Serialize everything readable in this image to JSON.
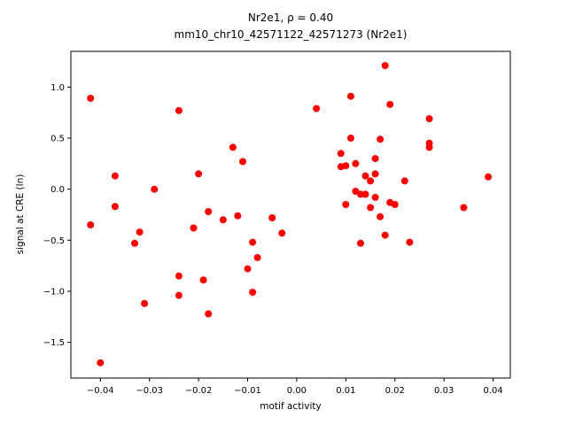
{
  "chart_data": {
    "type": "scatter",
    "title": "Nr2e1, ρ = 0.40",
    "subtitle": "mm10_chr10_42571122_42571273 (Nr2e1)",
    "xlabel": "motif activity",
    "ylabel": "signal at CRE (ln)",
    "xlim": [
      -0.046,
      0.0435
    ],
    "ylim": [
      -1.85,
      1.35
    ],
    "xticks": [
      -0.04,
      -0.03,
      -0.02,
      -0.01,
      0.0,
      0.01,
      0.02,
      0.03,
      0.04
    ],
    "xtick_labels": [
      "−0.04",
      "−0.03",
      "−0.02",
      "−0.01",
      "0.00",
      "0.01",
      "0.02",
      "0.03",
      "0.04"
    ],
    "yticks": [
      -1.5,
      -1.0,
      -0.5,
      0.0,
      0.5,
      1.0
    ],
    "ytick_labels": [
      "−1.5",
      "−1.0",
      "−0.5",
      "0.0",
      "0.5",
      "1.0"
    ],
    "grid": false,
    "legend": null,
    "marker_color": "#ff0000",
    "spine_color": "#000000",
    "points": [
      [
        -0.042,
        0.89
      ],
      [
        -0.042,
        -0.35
      ],
      [
        -0.04,
        -1.7
      ],
      [
        -0.037,
        0.13
      ],
      [
        -0.037,
        -0.17
      ],
      [
        -0.033,
        -0.53
      ],
      [
        -0.032,
        -0.42
      ],
      [
        -0.031,
        -1.12
      ],
      [
        -0.029,
        0.0
      ],
      [
        -0.024,
        0.77
      ],
      [
        -0.024,
        -0.85
      ],
      [
        -0.024,
        -1.04
      ],
      [
        -0.021,
        -0.38
      ],
      [
        -0.02,
        0.15
      ],
      [
        -0.019,
        -0.89
      ],
      [
        -0.018,
        -0.22
      ],
      [
        -0.018,
        -1.22
      ],
      [
        -0.015,
        -0.3
      ],
      [
        -0.013,
        0.41
      ],
      [
        -0.012,
        -0.26
      ],
      [
        -0.011,
        0.27
      ],
      [
        -0.01,
        -0.78
      ],
      [
        -0.009,
        -0.52
      ],
      [
        -0.009,
        -1.01
      ],
      [
        -0.008,
        -0.67
      ],
      [
        -0.005,
        -0.28
      ],
      [
        -0.003,
        -0.43
      ],
      [
        0.004,
        0.79
      ],
      [
        0.009,
        0.35
      ],
      [
        0.009,
        0.22
      ],
      [
        0.01,
        0.23
      ],
      [
        0.01,
        -0.15
      ],
      [
        0.011,
        0.91
      ],
      [
        0.011,
        0.5
      ],
      [
        0.012,
        0.25
      ],
      [
        0.012,
        -0.02
      ],
      [
        0.013,
        -0.05
      ],
      [
        0.013,
        -0.53
      ],
      [
        0.014,
        0.13
      ],
      [
        0.014,
        -0.05
      ],
      [
        0.015,
        0.08
      ],
      [
        0.015,
        -0.18
      ],
      [
        0.016,
        0.3
      ],
      [
        0.016,
        0.15
      ],
      [
        0.016,
        -0.08
      ],
      [
        0.017,
        0.49
      ],
      [
        0.017,
        -0.27
      ],
      [
        0.018,
        1.21
      ],
      [
        0.018,
        -0.45
      ],
      [
        0.019,
        0.83
      ],
      [
        0.019,
        -0.13
      ],
      [
        0.02,
        -0.15
      ],
      [
        0.022,
        0.08
      ],
      [
        0.023,
        -0.52
      ],
      [
        0.027,
        0.69
      ],
      [
        0.027,
        0.45
      ],
      [
        0.027,
        0.41
      ],
      [
        0.034,
        -0.18
      ],
      [
        0.039,
        0.12
      ]
    ]
  }
}
